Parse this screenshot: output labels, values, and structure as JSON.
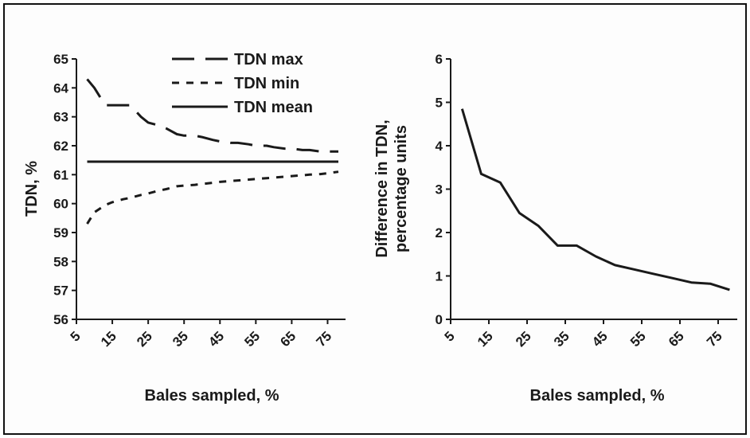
{
  "chart_data": [
    {
      "type": "line",
      "title": "",
      "xlabel": "Bales sampled, %",
      "ylabel": "TDN, %",
      "xlim": [
        5,
        80
      ],
      "ylim": [
        56,
        65
      ],
      "x_ticks": [
        "5",
        "15",
        "25",
        "35",
        "45",
        "55",
        "65",
        "75"
      ],
      "y_ticks": [
        "56",
        "57",
        "58",
        "59",
        "60",
        "61",
        "62",
        "63",
        "64",
        "65"
      ],
      "legend_position": "top-right",
      "x": [
        8,
        10,
        13,
        15,
        18,
        20,
        23,
        25,
        28,
        30,
        33,
        35,
        38,
        40,
        43,
        45,
        48,
        50,
        53,
        55,
        58,
        60,
        63,
        65,
        68,
        70,
        73,
        75,
        78
      ],
      "series": [
        {
          "name": "TDN max",
          "style": "dashed-long",
          "color": "#1a1a1a",
          "values": [
            64.3,
            64.0,
            63.4,
            63.4,
            63.4,
            63.4,
            63.0,
            62.8,
            62.7,
            62.6,
            62.4,
            62.35,
            62.35,
            62.3,
            62.2,
            62.15,
            62.1,
            62.1,
            62.05,
            62.0,
            62.0,
            61.95,
            61.9,
            61.9,
            61.85,
            61.85,
            61.8,
            61.8,
            61.8
          ]
        },
        {
          "name": "TDN min",
          "style": "dashed-short",
          "color": "#1a1a1a",
          "values": [
            59.3,
            59.7,
            59.95,
            60.05,
            60.15,
            60.2,
            60.3,
            60.35,
            60.45,
            60.5,
            60.6,
            60.62,
            60.65,
            60.68,
            60.72,
            60.75,
            60.78,
            60.8,
            60.83,
            60.85,
            60.88,
            60.9,
            60.93,
            60.95,
            60.98,
            61.0,
            61.02,
            61.05,
            61.1
          ]
        },
        {
          "name": "TDN mean",
          "style": "solid",
          "color": "#1a1a1a",
          "values": [
            61.45,
            61.45,
            61.45,
            61.45,
            61.45,
            61.45,
            61.45,
            61.45,
            61.45,
            61.45,
            61.45,
            61.45,
            61.45,
            61.45,
            61.45,
            61.45,
            61.45,
            61.45,
            61.45,
            61.45,
            61.45,
            61.45,
            61.45,
            61.45,
            61.45,
            61.45,
            61.45,
            61.45,
            61.45
          ]
        }
      ]
    },
    {
      "type": "line",
      "title": "",
      "xlabel": "Bales sampled, %",
      "ylabel": "Difference in TDN, percentage units",
      "ylabel_lines": [
        "Difference in TDN,",
        "percentage units"
      ],
      "xlim": [
        5,
        80
      ],
      "ylim": [
        0,
        6
      ],
      "x_ticks": [
        "5",
        "15",
        "25",
        "35",
        "45",
        "55",
        "65",
        "75"
      ],
      "y_ticks": [
        "0",
        "1",
        "2",
        "3",
        "4",
        "5",
        "6"
      ],
      "x": [
        8,
        13,
        18,
        23,
        28,
        33,
        38,
        43,
        48,
        53,
        58,
        63,
        68,
        73,
        78
      ],
      "series": [
        {
          "color": "#1a1a1a",
          "values": [
            4.85,
            3.35,
            3.15,
            2.45,
            2.15,
            1.7,
            1.7,
            1.45,
            1.25,
            1.15,
            1.05,
            0.95,
            0.85,
            0.82,
            0.68
          ]
        }
      ]
    }
  ]
}
